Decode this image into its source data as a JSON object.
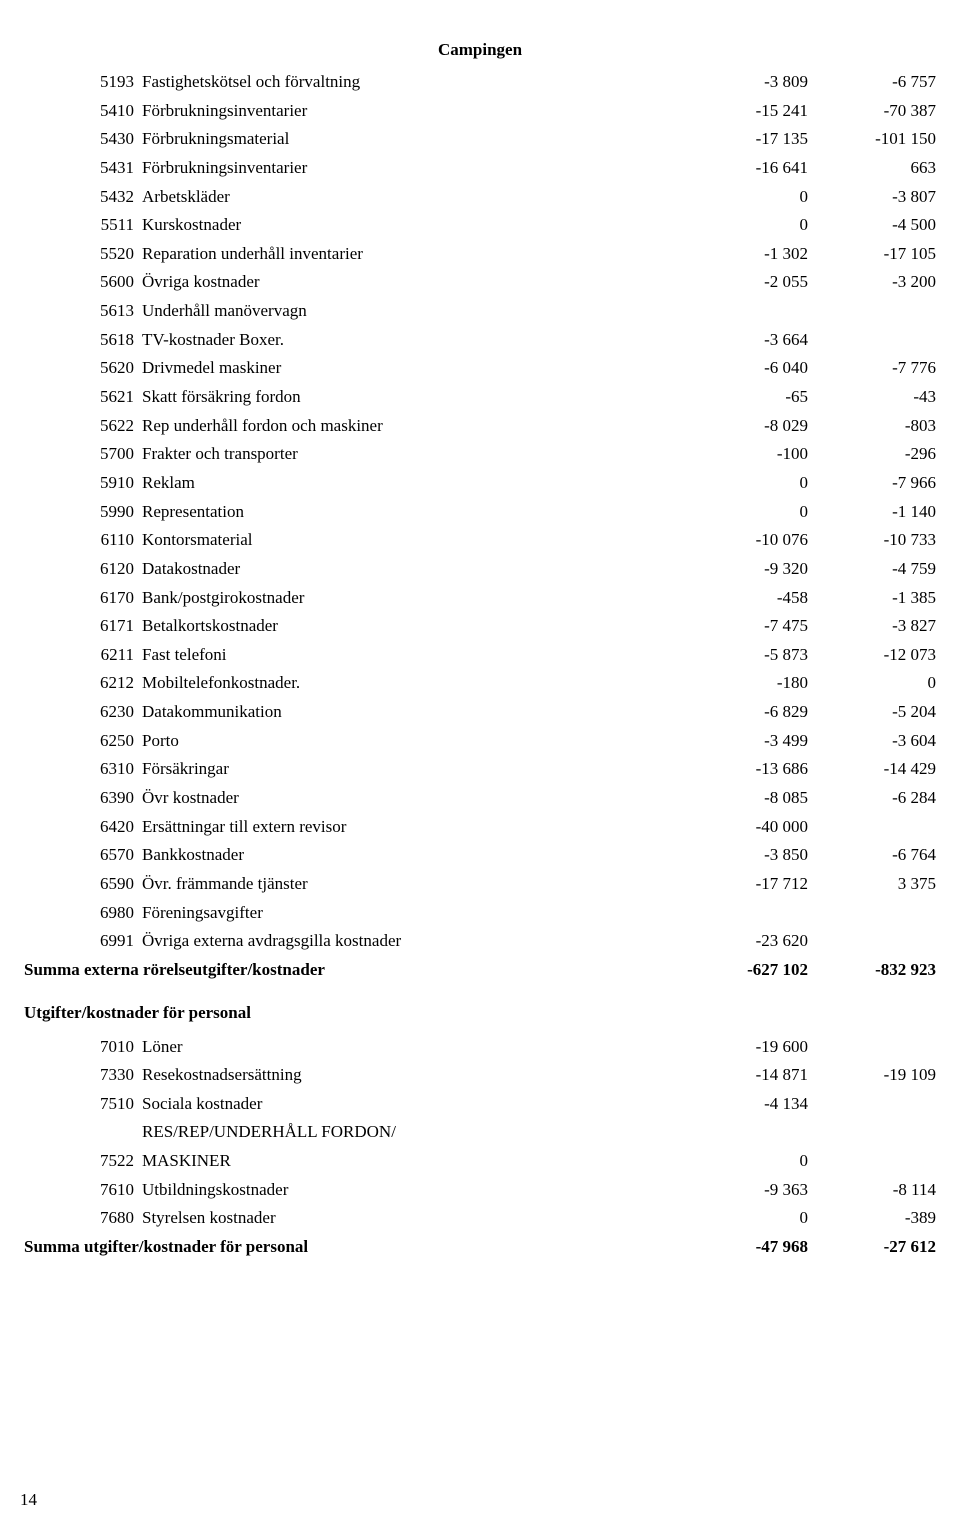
{
  "title": "Campingen",
  "rows1": [
    {
      "code": "5193",
      "desc": "Fastighetskötsel och förvaltning",
      "v1": "-3 809",
      "v2": "-6 757"
    },
    {
      "code": "5410",
      "desc": "Förbrukningsinventarier",
      "v1": "-15 241",
      "v2": "-70 387"
    },
    {
      "code": "5430",
      "desc": "Förbrukningsmaterial",
      "v1": "-17 135",
      "v2": "-101 150"
    },
    {
      "code": "5431",
      "desc": "Förbrukningsinventarier",
      "v1": "-16 641",
      "v2": "663"
    },
    {
      "code": "5432",
      "desc": "Arbetskläder",
      "v1": "0",
      "v2": "-3 807"
    },
    {
      "code": "5511",
      "desc": "Kurskostnader",
      "v1": "0",
      "v2": "-4 500"
    },
    {
      "code": "5520",
      "desc": "Reparation underhåll inventarier",
      "v1": "-1 302",
      "v2": "-17 105"
    },
    {
      "code": "5600",
      "desc": "Övriga kostnader",
      "v1": "-2 055",
      "v2": "-3 200"
    },
    {
      "code": "5613",
      "desc": "Underhåll manövervagn",
      "v1": "",
      "v2": ""
    },
    {
      "code": "5618",
      "desc": "TV-kostnader Boxer.",
      "v1": "-3 664",
      "v2": ""
    },
    {
      "code": "5620",
      "desc": "Drivmedel maskiner",
      "v1": "-6 040",
      "v2": "-7 776"
    },
    {
      "code": "5621",
      "desc": "Skatt försäkring fordon",
      "v1": "-65",
      "v2": "-43"
    },
    {
      "code": "5622",
      "desc": "Rep underhåll fordon och maskiner",
      "v1": "-8 029",
      "v2": "-803"
    },
    {
      "code": "5700",
      "desc": "Frakter och transporter",
      "v1": "-100",
      "v2": "-296"
    },
    {
      "code": "5910",
      "desc": "Reklam",
      "v1": "0",
      "v2": "-7 966"
    },
    {
      "code": "5990",
      "desc": "Representation",
      "v1": "0",
      "v2": "-1 140"
    },
    {
      "code": "6110",
      "desc": "Kontorsmaterial",
      "v1": "-10 076",
      "v2": "-10 733"
    },
    {
      "code": "6120",
      "desc": "Datakostnader",
      "v1": "-9 320",
      "v2": "-4 759"
    },
    {
      "code": "6170",
      "desc": "Bank/postgirokostnader",
      "v1": "-458",
      "v2": "-1 385"
    },
    {
      "code": "6171",
      "desc": "Betalkortskostnader",
      "v1": "-7 475",
      "v2": "-3 827"
    },
    {
      "code": "6211",
      "desc": "Fast telefoni",
      "v1": "-5 873",
      "v2": "-12 073"
    },
    {
      "code": "6212",
      "desc": "Mobiltelefonkostnader.",
      "v1": "-180",
      "v2": "0"
    },
    {
      "code": "6230",
      "desc": "Datakommunikation",
      "v1": "-6 829",
      "v2": "-5 204"
    },
    {
      "code": "6250",
      "desc": "Porto",
      "v1": "-3 499",
      "v2": "-3 604"
    },
    {
      "code": "6310",
      "desc": "Försäkringar",
      "v1": "-13 686",
      "v2": "-14 429"
    },
    {
      "code": "6390",
      "desc": "Övr kostnader",
      "v1": "-8 085",
      "v2": "-6 284"
    },
    {
      "code": "6420",
      "desc": "Ersättningar till extern revisor",
      "v1": "-40 000",
      "v2": ""
    },
    {
      "code": "6570",
      "desc": "Bankkostnader",
      "v1": "-3 850",
      "v2": "-6 764"
    },
    {
      "code": "6590",
      "desc": "Övr. främmande tjänster",
      "v1": "-17 712",
      "v2": "3 375"
    },
    {
      "code": "6980",
      "desc": "Föreningsavgifter",
      "v1": "",
      "v2": ""
    },
    {
      "code": "6991",
      "desc": "Övriga externa avdragsgilla kostnader",
      "v1": "-23 620",
      "v2": ""
    }
  ],
  "summary1": {
    "desc": "Summa externa rörelseutgifter/kostnader",
    "v1": "-627 102",
    "v2": "-832 923"
  },
  "section2_title": "Utgifter/kostnader för personal",
  "rows2": [
    {
      "code": "7010",
      "desc": "Löner",
      "v1": "-19 600",
      "v2": ""
    },
    {
      "code": "7330",
      "desc": "Resekostnadsersättning",
      "v1": "-14 871",
      "v2": "-19 109"
    },
    {
      "code": "7510",
      "desc": "Sociala kostnader",
      "v1": "-4 134",
      "v2": ""
    },
    {
      "code": "7522",
      "desc": "RES/REP/UNDERHÅLL FORDON/ MASKINER",
      "v1": "0",
      "v2": ""
    },
    {
      "code": "7610",
      "desc": "Utbildningskostnader",
      "v1": "-9 363",
      "v2": "-8 114"
    },
    {
      "code": "7680",
      "desc": "Styrelsen kostnader",
      "v1": "0",
      "v2": "-389"
    }
  ],
  "summary2": {
    "desc": "Summa utgifter/kostnader för personal",
    "v1": "-47 968",
    "v2": "-27 612"
  },
  "page_number": "14"
}
